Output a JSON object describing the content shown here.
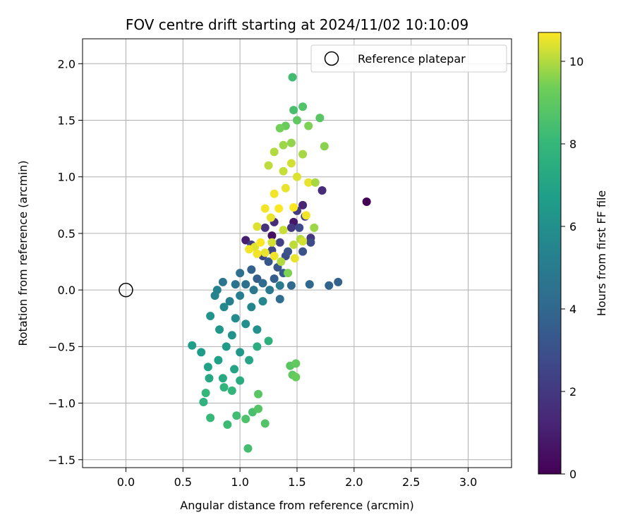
{
  "chart_data": {
    "type": "scatter",
    "title": "FOV centre drift starting at 2024/11/02 10:10:09",
    "xlabel": "Angular distance from reference (arcmin)",
    "ylabel": "Rotation from reference (arcmin)",
    "xlim": [
      -0.38,
      3.38
    ],
    "ylim": [
      -1.57,
      2.22
    ],
    "xticks": [
      0.0,
      0.5,
      1.0,
      1.5,
      2.0,
      2.5,
      3.0
    ],
    "yticks": [
      -1.5,
      -1.0,
      -0.5,
      0.0,
      0.5,
      1.0,
      1.5,
      2.0
    ],
    "xtick_labels": [
      "0.0",
      "0.5",
      "1.0",
      "1.5",
      "2.0",
      "2.5",
      "3.0"
    ],
    "ytick_labels": [
      "−1.5",
      "−1.0",
      "−0.5",
      "0.0",
      "0.5",
      "1.0",
      "1.5",
      "2.0"
    ],
    "grid": true,
    "legend": {
      "position": "top-right",
      "label": "Reference platepar"
    },
    "reference_point": {
      "x": 0.0,
      "y": 0.0
    },
    "colorbar": {
      "label": "Hours from first FF file",
      "colormap": "viridis",
      "range": [
        0,
        10.7
      ],
      "ticks": [
        0,
        2,
        4,
        6,
        8,
        10
      ],
      "tick_labels": [
        "0",
        "2",
        "4",
        "6",
        "8",
        "10"
      ]
    },
    "points": [
      [
        2.11,
        0.78,
        0.0
      ],
      [
        1.28,
        0.48,
        0.5
      ],
      [
        1.47,
        0.6,
        0.8
      ],
      [
        1.05,
        0.44,
        1.0
      ],
      [
        1.55,
        0.75,
        1.2
      ],
      [
        1.3,
        0.6,
        1.5
      ],
      [
        1.72,
        0.88,
        1.5
      ],
      [
        1.22,
        0.55,
        1.8
      ],
      [
        1.62,
        0.46,
        1.9
      ],
      [
        1.45,
        0.55,
        2.0
      ],
      [
        1.5,
        0.7,
        2.1
      ],
      [
        1.1,
        0.4,
        2.2
      ],
      [
        1.35,
        0.42,
        2.3
      ],
      [
        1.57,
        0.65,
        2.4
      ],
      [
        1.28,
        0.35,
        2.5
      ],
      [
        1.2,
        0.3,
        2.6
      ],
      [
        1.52,
        0.55,
        2.7
      ],
      [
        1.62,
        0.42,
        2.8
      ],
      [
        1.4,
        0.3,
        2.9
      ],
      [
        1.55,
        0.34,
        3.0
      ],
      [
        1.42,
        0.34,
        3.1
      ],
      [
        1.33,
        0.2,
        3.2
      ],
      [
        1.25,
        0.25,
        3.3
      ],
      [
        1.38,
        0.15,
        3.4
      ],
      [
        1.15,
        0.1,
        3.5
      ],
      [
        1.3,
        0.1,
        3.6
      ],
      [
        1.1,
        0.18,
        3.7
      ],
      [
        1.86,
        0.07,
        3.8
      ],
      [
        1.78,
        0.04,
        3.9
      ],
      [
        1.61,
        0.05,
        4.0
      ],
      [
        1.45,
        0.04,
        4.1
      ],
      [
        1.2,
        0.06,
        4.2
      ],
      [
        1.35,
        -0.08,
        4.3
      ],
      [
        1.0,
        0.15,
        4.4
      ],
      [
        1.05,
        0.05,
        4.5
      ],
      [
        0.96,
        0.05,
        4.6
      ],
      [
        0.85,
        0.07,
        4.7
      ],
      [
        1.12,
        0.0,
        4.8
      ],
      [
        1.26,
        0.0,
        4.9
      ],
      [
        1.35,
        0.04,
        5.0
      ],
      [
        1.0,
        -0.05,
        5.1
      ],
      [
        0.91,
        -0.1,
        5.2
      ],
      [
        0.8,
        0.0,
        5.3
      ],
      [
        0.78,
        -0.05,
        5.4
      ],
      [
        1.1,
        -0.15,
        5.5
      ],
      [
        1.2,
        -0.1,
        5.6
      ],
      [
        0.86,
        -0.15,
        5.7
      ],
      [
        0.96,
        -0.25,
        5.8
      ],
      [
        1.05,
        -0.3,
        5.9
      ],
      [
        1.15,
        -0.35,
        6.0
      ],
      [
        0.93,
        -0.4,
        6.1
      ],
      [
        0.74,
        -0.23,
        6.2
      ],
      [
        0.82,
        -0.35,
        6.3
      ],
      [
        1.0,
        -0.55,
        6.4
      ],
      [
        0.88,
        -0.5,
        6.5
      ],
      [
        0.66,
        -0.55,
        6.6
      ],
      [
        0.58,
        -0.49,
        6.7
      ],
      [
        0.81,
        -0.62,
        6.8
      ],
      [
        0.72,
        -0.68,
        6.9
      ],
      [
        0.95,
        -0.7,
        7.0
      ],
      [
        1.08,
        -0.62,
        7.1
      ],
      [
        0.73,
        -0.78,
        7.2
      ],
      [
        0.85,
        -0.78,
        7.3
      ],
      [
        1.0,
        -0.8,
        7.4
      ],
      [
        1.15,
        -0.5,
        7.5
      ],
      [
        1.25,
        -0.45,
        7.6
      ],
      [
        0.68,
        -0.99,
        7.7
      ],
      [
        0.86,
        -0.86,
        7.8
      ],
      [
        0.93,
        -0.89,
        7.9
      ],
      [
        0.7,
        -0.91,
        8.0
      ],
      [
        0.74,
        -1.13,
        8.1
      ],
      [
        0.89,
        -1.19,
        8.2
      ],
      [
        0.97,
        -1.11,
        8.3
      ],
      [
        1.07,
        -1.4,
        8.4
      ],
      [
        1.11,
        -1.08,
        8.5
      ],
      [
        1.05,
        -1.14,
        8.6
      ],
      [
        1.22,
        -1.18,
        8.7
      ],
      [
        1.16,
        -1.05,
        8.8
      ],
      [
        1.16,
        -0.92,
        8.9
      ],
      [
        1.44,
        -0.67,
        8.9
      ],
      [
        1.46,
        -0.75,
        9.0
      ],
      [
        1.49,
        -0.65,
        9.1
      ],
      [
        1.49,
        -0.77,
        9.2
      ],
      [
        1.46,
        1.88,
        8.3
      ],
      [
        1.47,
        1.59,
        8.5
      ],
      [
        1.55,
        1.62,
        8.7
      ],
      [
        1.7,
        1.52,
        8.9
      ],
      [
        1.5,
        1.5,
        9.0
      ],
      [
        1.4,
        1.45,
        9.2
      ],
      [
        1.35,
        1.43,
        9.4
      ],
      [
        1.6,
        1.45,
        9.5
      ],
      [
        1.74,
        1.27,
        9.6
      ],
      [
        1.45,
        1.3,
        9.7
      ],
      [
        1.38,
        1.28,
        9.8
      ],
      [
        1.55,
        1.2,
        9.9
      ],
      [
        1.3,
        1.22,
        10.0
      ],
      [
        1.25,
        1.1,
        10.1
      ],
      [
        1.38,
        1.05,
        10.2
      ],
      [
        1.45,
        1.12,
        10.3
      ],
      [
        1.5,
        1.0,
        10.4
      ],
      [
        1.6,
        0.95,
        10.5
      ],
      [
        1.4,
        0.9,
        10.5
      ],
      [
        1.3,
        0.85,
        10.6
      ],
      [
        1.22,
        0.72,
        10.6
      ],
      [
        1.34,
        0.72,
        10.7
      ],
      [
        1.47,
        0.73,
        10.7
      ],
      [
        1.58,
        0.66,
        10.6
      ],
      [
        1.27,
        0.64,
        10.5
      ],
      [
        1.15,
        0.56,
        10.4
      ],
      [
        1.28,
        0.42,
        10.3
      ],
      [
        1.38,
        0.53,
        10.2
      ],
      [
        1.47,
        0.4,
        10.1
      ],
      [
        1.53,
        0.45,
        10.0
      ],
      [
        1.13,
        0.38,
        10.4
      ],
      [
        1.22,
        0.33,
        10.5
      ],
      [
        1.3,
        0.3,
        10.6
      ],
      [
        1.48,
        0.28,
        10.5
      ],
      [
        1.55,
        0.43,
        10.3
      ],
      [
        1.65,
        0.55,
        9.8
      ],
      [
        1.66,
        0.95,
        9.9
      ],
      [
        1.08,
        0.36,
        10.6
      ],
      [
        1.15,
        0.32,
        10.6
      ],
      [
        1.36,
        0.25,
        10.0
      ],
      [
        1.42,
        0.15,
        9.5
      ],
      [
        1.18,
        0.42,
        10.7
      ]
    ]
  }
}
